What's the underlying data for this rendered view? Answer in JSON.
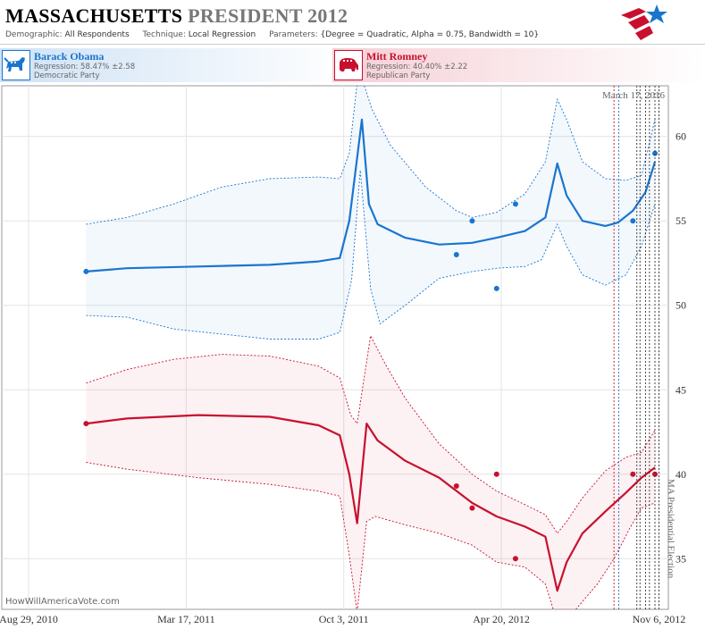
{
  "header": {
    "state": "MASSACHUSETTS",
    "race": "PRESIDENT 2012",
    "demographic_label": "Demographic:",
    "demographic_value": "All Respondents",
    "technique_label": "Technique:",
    "technique_value": "Local Regression",
    "parameters_label": "Parameters:",
    "parameters_value": "{Degree = Quadratic, Alpha = 0.75, Bandwidth = 10}"
  },
  "candidates": [
    {
      "name": "Barack Obama",
      "regression": "Regression: 58.47% ±2.58",
      "party": "Democratic Party",
      "color": "#1a75cf",
      "icon": "donkey-icon"
    },
    {
      "name": "Mitt Romney",
      "regression": "Regression: 40.40% ±2.22",
      "party": "Republican Party",
      "color": "#c8102e",
      "icon": "elephant-icon"
    }
  ],
  "credit": "HowWillAmericaVote.com",
  "chart_data": {
    "type": "line",
    "x_axis": {
      "type": "date",
      "range": [
        "2010-07-26",
        "2012-11-18"
      ],
      "ticks": [
        "Aug 29, 2010",
        "Mar 17, 2011",
        "Oct 3, 2011",
        "Apr 20, 2012",
        "Nov 6, 2012"
      ]
    },
    "y_axis": {
      "position": "right",
      "range": [
        32,
        63
      ],
      "ticks": [
        35,
        40,
        45,
        50,
        55,
        60
      ]
    },
    "grid": true,
    "series": [
      {
        "name": "Barack Obama",
        "color": "#1a75cf",
        "points": [
          [
            "2010-11-10",
            52
          ],
          [
            "2012-02-23",
            53
          ],
          [
            "2012-03-14",
            55
          ],
          [
            "2012-04-14",
            51
          ],
          [
            "2012-05-08",
            56
          ],
          [
            "2012-10-04",
            55
          ],
          [
            "2012-11-01",
            59
          ]
        ],
        "regression": [
          [
            "2010-11-10",
            52.0
          ],
          [
            "2011-01-01",
            52.2
          ],
          [
            "2011-04-01",
            52.3
          ],
          [
            "2011-07-01",
            52.4
          ],
          [
            "2011-09-01",
            52.6
          ],
          [
            "2011-09-28",
            52.8
          ],
          [
            "2011-10-10",
            55
          ],
          [
            "2011-10-26",
            61.0
          ],
          [
            "2011-11-04",
            56
          ],
          [
            "2011-11-15",
            54.8
          ],
          [
            "2011-12-20",
            54.0
          ],
          [
            "2012-02-01",
            53.6
          ],
          [
            "2012-03-14",
            53.7
          ],
          [
            "2012-04-14",
            54.0
          ],
          [
            "2012-05-20",
            54.4
          ],
          [
            "2012-06-15",
            55.2
          ],
          [
            "2012-06-30",
            58.4
          ],
          [
            "2012-07-12",
            56.5
          ],
          [
            "2012-08-01",
            55.0
          ],
          [
            "2012-08-30",
            54.7
          ],
          [
            "2012-09-15",
            54.9
          ],
          [
            "2012-10-04",
            55.6
          ],
          [
            "2012-10-20",
            56.7
          ],
          [
            "2012-11-01",
            58.5
          ]
        ],
        "upper": [
          [
            "2010-11-10",
            54.8
          ],
          [
            "2011-01-01",
            55.2
          ],
          [
            "2011-03-01",
            56.0
          ],
          [
            "2011-05-01",
            57.0
          ],
          [
            "2011-07-01",
            57.5
          ],
          [
            "2011-09-01",
            57.6
          ],
          [
            "2011-09-28",
            57.5
          ],
          [
            "2011-10-10",
            59
          ],
          [
            "2011-10-22",
            64
          ],
          [
            "2011-11-08",
            61.6
          ],
          [
            "2011-12-01",
            59.5
          ],
          [
            "2012-01-15",
            57.0
          ],
          [
            "2012-02-23",
            55.6
          ],
          [
            "2012-03-14",
            55.2
          ],
          [
            "2012-04-14",
            55.5
          ],
          [
            "2012-05-20",
            56.6
          ],
          [
            "2012-06-15",
            58.5
          ],
          [
            "2012-06-30",
            62.2
          ],
          [
            "2012-07-12",
            61.0
          ],
          [
            "2012-08-01",
            58.5
          ],
          [
            "2012-08-30",
            57.5
          ],
          [
            "2012-09-25",
            57.4
          ],
          [
            "2012-10-15",
            57.7
          ],
          [
            "2012-11-01",
            61.0
          ]
        ],
        "lower": [
          [
            "2010-11-10",
            49.4
          ],
          [
            "2011-01-01",
            49.3
          ],
          [
            "2011-03-01",
            48.6
          ],
          [
            "2011-05-01",
            48.3
          ],
          [
            "2011-07-01",
            48.0
          ],
          [
            "2011-09-01",
            48.0
          ],
          [
            "2011-09-28",
            48.4
          ],
          [
            "2011-10-13",
            51.5
          ],
          [
            "2011-10-24",
            58.0
          ],
          [
            "2011-11-06",
            51.0
          ],
          [
            "2011-11-18",
            48.9
          ],
          [
            "2011-12-20",
            50.0
          ],
          [
            "2012-02-01",
            51.6
          ],
          [
            "2012-03-14",
            52.0
          ],
          [
            "2012-04-14",
            52.2
          ],
          [
            "2012-05-20",
            52.3
          ],
          [
            "2012-06-10",
            52.7
          ],
          [
            "2012-06-30",
            54.8
          ],
          [
            "2012-07-12",
            53.5
          ],
          [
            "2012-08-01",
            51.8
          ],
          [
            "2012-08-30",
            51.2
          ],
          [
            "2012-09-25",
            51.8
          ],
          [
            "2012-10-15",
            53.5
          ],
          [
            "2012-11-01",
            56.0
          ]
        ]
      },
      {
        "name": "Mitt Romney",
        "color": "#c8102e",
        "points": [
          [
            "2010-11-10",
            43
          ],
          [
            "2012-02-23",
            39.3
          ],
          [
            "2012-03-14",
            38
          ],
          [
            "2012-04-14",
            40
          ],
          [
            "2012-05-08",
            35
          ],
          [
            "2012-10-04",
            40
          ],
          [
            "2012-11-01",
            40
          ]
        ],
        "regression": [
          [
            "2010-11-10",
            43.0
          ],
          [
            "2011-01-01",
            43.3
          ],
          [
            "2011-04-01",
            43.5
          ],
          [
            "2011-07-01",
            43.4
          ],
          [
            "2011-09-01",
            42.9
          ],
          [
            "2011-09-28",
            42.3
          ],
          [
            "2011-10-10",
            40.0
          ],
          [
            "2011-10-20",
            37.1
          ],
          [
            "2011-11-01",
            43.0
          ],
          [
            "2011-11-15",
            42.0
          ],
          [
            "2011-12-20",
            40.8
          ],
          [
            "2012-02-01",
            39.8
          ],
          [
            "2012-03-14",
            38.3
          ],
          [
            "2012-04-14",
            37.5
          ],
          [
            "2012-05-20",
            36.9
          ],
          [
            "2012-06-15",
            36.3
          ],
          [
            "2012-06-30",
            33.1
          ],
          [
            "2012-07-12",
            34.8
          ],
          [
            "2012-08-01",
            36.5
          ],
          [
            "2012-08-30",
            37.8
          ],
          [
            "2012-09-25",
            38.9
          ],
          [
            "2012-10-15",
            39.8
          ],
          [
            "2012-11-01",
            40.4
          ]
        ],
        "upper": [
          [
            "2010-11-10",
            45.4
          ],
          [
            "2011-01-01",
            46.2
          ],
          [
            "2011-03-01",
            46.8
          ],
          [
            "2011-05-01",
            47.1
          ],
          [
            "2011-07-01",
            47.0
          ],
          [
            "2011-09-01",
            46.4
          ],
          [
            "2011-09-28",
            45.7
          ],
          [
            "2011-10-12",
            43.5
          ],
          [
            "2011-10-20",
            43.0
          ],
          [
            "2011-11-06",
            48.2
          ],
          [
            "2011-11-25",
            46.5
          ],
          [
            "2011-12-20",
            44.5
          ],
          [
            "2012-02-01",
            41.8
          ],
          [
            "2012-03-14",
            40.0
          ],
          [
            "2012-04-14",
            39.0
          ],
          [
            "2012-05-20",
            38.2
          ],
          [
            "2012-06-15",
            37.6
          ],
          [
            "2012-06-30",
            36.5
          ],
          [
            "2012-07-12",
            37.2
          ],
          [
            "2012-08-01",
            38.6
          ],
          [
            "2012-08-30",
            40.2
          ],
          [
            "2012-09-25",
            41.0
          ],
          [
            "2012-10-15",
            41.3
          ],
          [
            "2012-11-01",
            42.6
          ]
        ],
        "lower": [
          [
            "2010-11-10",
            40.7
          ],
          [
            "2011-01-01",
            40.3
          ],
          [
            "2011-04-01",
            39.8
          ],
          [
            "2011-07-01",
            39.4
          ],
          [
            "2011-09-01",
            39.0
          ],
          [
            "2011-09-28",
            38.7
          ],
          [
            "2011-10-10",
            35.2
          ],
          [
            "2011-10-20",
            31.8
          ],
          [
            "2011-11-01",
            37.2
          ],
          [
            "2011-11-12",
            37.5
          ],
          [
            "2011-12-20",
            37.0
          ],
          [
            "2012-02-01",
            36.5
          ],
          [
            "2012-03-14",
            35.8
          ],
          [
            "2012-04-14",
            34.8
          ],
          [
            "2012-05-20",
            34.5
          ],
          [
            "2012-06-15",
            33.5
          ],
          [
            "2012-06-30",
            31.2
          ],
          [
            "2012-07-20",
            31.8
          ],
          [
            "2012-08-20",
            33.5
          ],
          [
            "2012-09-10",
            35.0
          ],
          [
            "2012-09-30",
            36.8
          ],
          [
            "2012-10-15",
            38.0
          ],
          [
            "2012-11-01",
            38.3
          ]
        ]
      }
    ],
    "markers": [
      {
        "date": "2012-09-10",
        "color": "#c8102e"
      },
      {
        "date": "2012-09-16",
        "color": "#1a75cf"
      },
      {
        "date": "2012-10-09",
        "color": "#333333"
      },
      {
        "date": "2012-10-13",
        "color": "#333333"
      },
      {
        "date": "2012-10-20",
        "color": "#333333"
      },
      {
        "date": "2012-10-25",
        "color": "#333333"
      },
      {
        "date": "2012-11-01",
        "color": "#333333"
      },
      {
        "date": "2012-11-06",
        "color": "#333333"
      }
    ],
    "annotations": [
      {
        "text": "March 17, 2016",
        "position": "top-right"
      },
      {
        "text": "MA Presidential Election",
        "date": "2012-11-06",
        "orientation": "vertical"
      }
    ]
  }
}
